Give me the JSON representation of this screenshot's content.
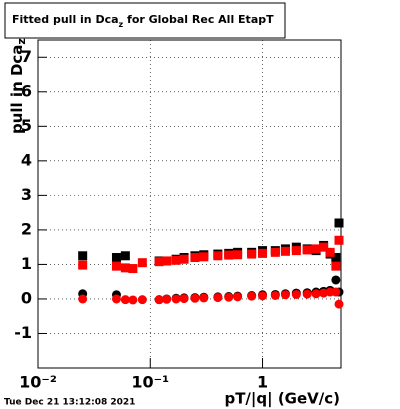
{
  "chart_data": {
    "type": "scatter",
    "title": [
      "Fitted pull in Dca",
      "z",
      " for Global Rec All EtapT"
    ],
    "y_label": [
      "pull in Dca",
      "z"
    ],
    "x_label": "pT/|q| (GeV/c)",
    "timestamp": "Tue Dec 21 13:12:08 2021",
    "xlog": true,
    "grid": true,
    "xlim": [
      0.01,
      5
    ],
    "ylim": [
      -2,
      7.5
    ],
    "xticks": [
      {
        "value": 0.01,
        "label": "10⁻²"
      },
      {
        "value": 0.1,
        "label": "10⁻¹"
      },
      1
    ],
    "yticks": [
      -1,
      0,
      1,
      2,
      3,
      4,
      5,
      6,
      7
    ],
    "x": [
      0.025,
      0.05,
      0.06,
      0.07,
      0.085,
      0.12,
      0.14,
      0.17,
      0.2,
      0.25,
      0.3,
      0.4,
      0.5,
      0.6,
      0.8,
      1.0,
      1.3,
      1.6,
      2.0,
      2.5,
      3.0,
      3.5,
      4.0,
      4.5,
      4.8
    ],
    "series": [
      {
        "color": "#000000",
        "marker": "square",
        "values": [
          1.25,
          1.2,
          1.25,
          null,
          null,
          1.1,
          1.1,
          1.15,
          1.2,
          1.25,
          1.28,
          1.3,
          1.32,
          1.35,
          1.35,
          1.4,
          1.4,
          1.45,
          1.5,
          1.45,
          1.4,
          1.55,
          1.3,
          1.2,
          2.2
        ]
      },
      {
        "color": "#ff0000",
        "marker": "square",
        "values": [
          0.98,
          0.95,
          0.9,
          0.88,
          1.05,
          1.08,
          1.1,
          1.12,
          1.15,
          1.2,
          1.22,
          1.25,
          1.27,
          1.28,
          1.3,
          1.32,
          1.35,
          1.38,
          1.4,
          1.42,
          1.45,
          1.5,
          1.35,
          0.95,
          1.7
        ]
      },
      {
        "color": "#000000",
        "marker": "circle",
        "values": [
          0.15,
          0.12,
          null,
          null,
          null,
          -0.02,
          0.0,
          0.02,
          0.03,
          0.04,
          0.05,
          0.06,
          0.07,
          0.08,
          0.1,
          0.12,
          0.13,
          0.15,
          0.17,
          0.18,
          0.2,
          0.22,
          0.25,
          0.55,
          0.2
        ]
      },
      {
        "color": "#ff0000",
        "marker": "circle",
        "values": [
          0.0,
          0.0,
          -0.02,
          -0.03,
          -0.02,
          -0.02,
          -0.01,
          0.0,
          0.01,
          0.02,
          0.03,
          0.04,
          0.05,
          0.06,
          0.08,
          0.09,
          0.1,
          0.12,
          0.13,
          0.14,
          0.15,
          0.17,
          0.2,
          0.2,
          -0.15
        ]
      }
    ]
  }
}
